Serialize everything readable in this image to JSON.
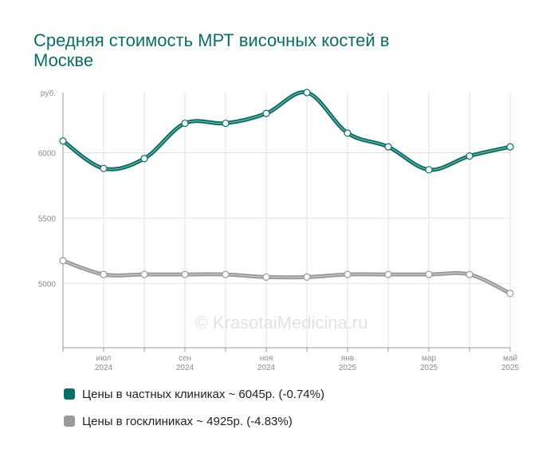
{
  "title": "Средняя стоимость МРТ височных костей в Москве",
  "watermark": "© KrasotaiMedicina.ru",
  "colors": {
    "private": "#0b6e64",
    "state": "#9a9a9a",
    "grid": "#e2e2e2",
    "axis": "#9a9a9a"
  },
  "chart_data": {
    "type": "line",
    "x": [
      "2024-06",
      "2024-07",
      "2024-08",
      "2024-09",
      "2024-10",
      "2024-11",
      "2024-12",
      "2025-01",
      "2025-02",
      "2025-03",
      "2025-04",
      "2025-05"
    ],
    "x_tick_labels": [
      {
        "index": 1,
        "month": "июл",
        "year": "2024"
      },
      {
        "index": 3,
        "month": "сен",
        "year": "2024"
      },
      {
        "index": 5,
        "month": "ноя",
        "year": "2024"
      },
      {
        "index": 7,
        "month": "янв",
        "year": "2025"
      },
      {
        "index": 9,
        "month": "мар",
        "year": "2025"
      },
      {
        "index": 11,
        "month": "май",
        "year": "2025"
      }
    ],
    "ylabel": "руб.",
    "yticks": [
      5000,
      5500,
      6000
    ],
    "ylim": [
      4510,
      6460
    ],
    "grid": true,
    "legend_position": "bottom",
    "series": [
      {
        "name": "Цены в частных клиниках ~ 6045р. (-0.74%)",
        "color": "#0b6e64",
        "values": [
          6090,
          5880,
          5955,
          6225,
          6225,
          6300,
          6460,
          6150,
          6045,
          5870,
          5975,
          6045
        ]
      },
      {
        "name": "Цены в госклиниках ~ 4925р. (-4.83%)",
        "color": "#9a9a9a",
        "values": [
          5175,
          5070,
          5070,
          5070,
          5070,
          5050,
          5050,
          5070,
          5070,
          5070,
          5070,
          4925
        ]
      }
    ]
  }
}
